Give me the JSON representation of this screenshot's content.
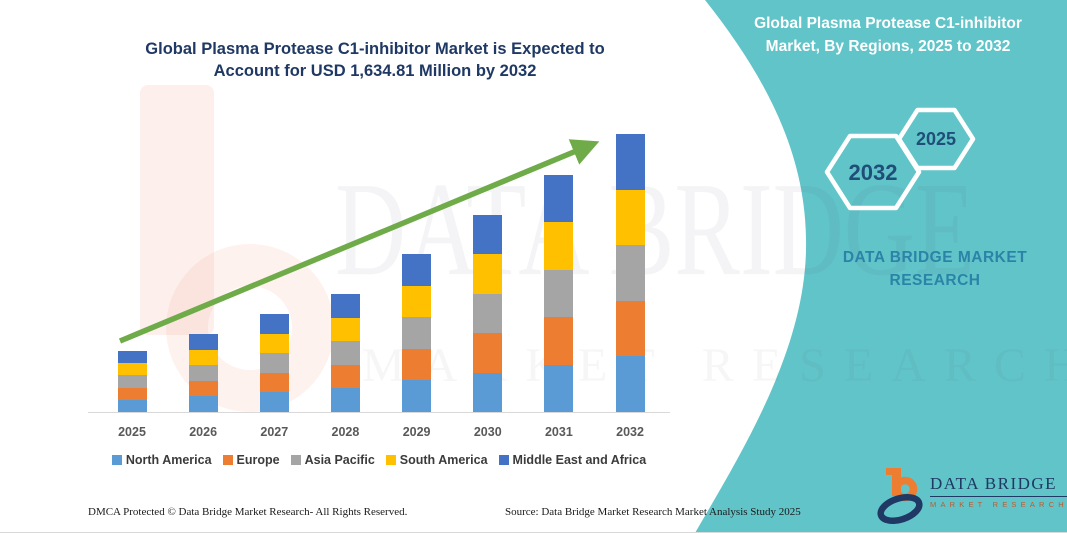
{
  "left_section": {
    "title_line1": "Global Plasma Protease C1-inhibitor Market is Expected to",
    "title_line2": "Account for USD 1,634.81 Million by 2032",
    "footer_left": "DMCA Protected © Data Bridge Market Research-  All Rights Reserved.",
    "footer_right": "Source: Data Bridge Market Research  Market Analysis Study 2025"
  },
  "right_panel": {
    "background_color": "#61C4C8",
    "title_line1": "Global Plasma Protease C1-inhibitor",
    "title_line2": "Market, By Regions, 2025 to 2032",
    "hexagon_back_year": "2032",
    "hexagon_front_year": "2025",
    "subtitle_line1": "DATA BRIDGE MARKET",
    "subtitle_line2": "RESEARCH"
  },
  "brand_logo": {
    "name": "DATA BRIDGE",
    "tagline": "MARKET RESEARCH"
  },
  "watermark": {
    "text_primary": "DATA BRIDGE",
    "text_secondary": "MARKET RESEARCH"
  },
  "chart_data": {
    "type": "bar",
    "stacked": true,
    "title": "Global Plasma Protease C1-inhibitor Market is Expected to Account for USD 1,634.81 Million by 2032",
    "unit": "USD Million (values estimated from bar heights; no value axis shown)",
    "categories": [
      "2025",
      "2026",
      "2027",
      "2028",
      "2029",
      "2030",
      "2031",
      "2032"
    ],
    "series": [
      {
        "name": "North America",
        "color": "#5B9BD5",
        "values": [
          72,
          92,
          115,
          139,
          186,
          232,
          279,
          327
        ]
      },
      {
        "name": "Europe",
        "color": "#ED7D31",
        "values": [
          72,
          92,
          115,
          139,
          186,
          232,
          279,
          327
        ]
      },
      {
        "name": "Asia Pacific",
        "color": "#A5A5A5",
        "values": [
          72,
          92,
          115,
          139,
          186,
          232,
          279,
          327
        ]
      },
      {
        "name": "South America",
        "color": "#FFC000",
        "values": [
          72,
          92,
          115,
          139,
          186,
          232,
          279,
          327
        ]
      },
      {
        "name": "Middle East and Africa",
        "color": "#4472C4",
        "values": [
          71,
          91,
          116,
          138,
          185,
          231,
          278,
          326.81
        ]
      }
    ],
    "totals": [
      359,
      459,
      576,
      694,
      929,
      1159,
      1394,
      1634.81
    ],
    "projected_total_2032": "1,634.81",
    "legend_position": "bottom",
    "grid": false,
    "trend_arrow": true,
    "trend_arrow_color": "#6FAC49",
    "axis_color": "#D9D9D9"
  }
}
